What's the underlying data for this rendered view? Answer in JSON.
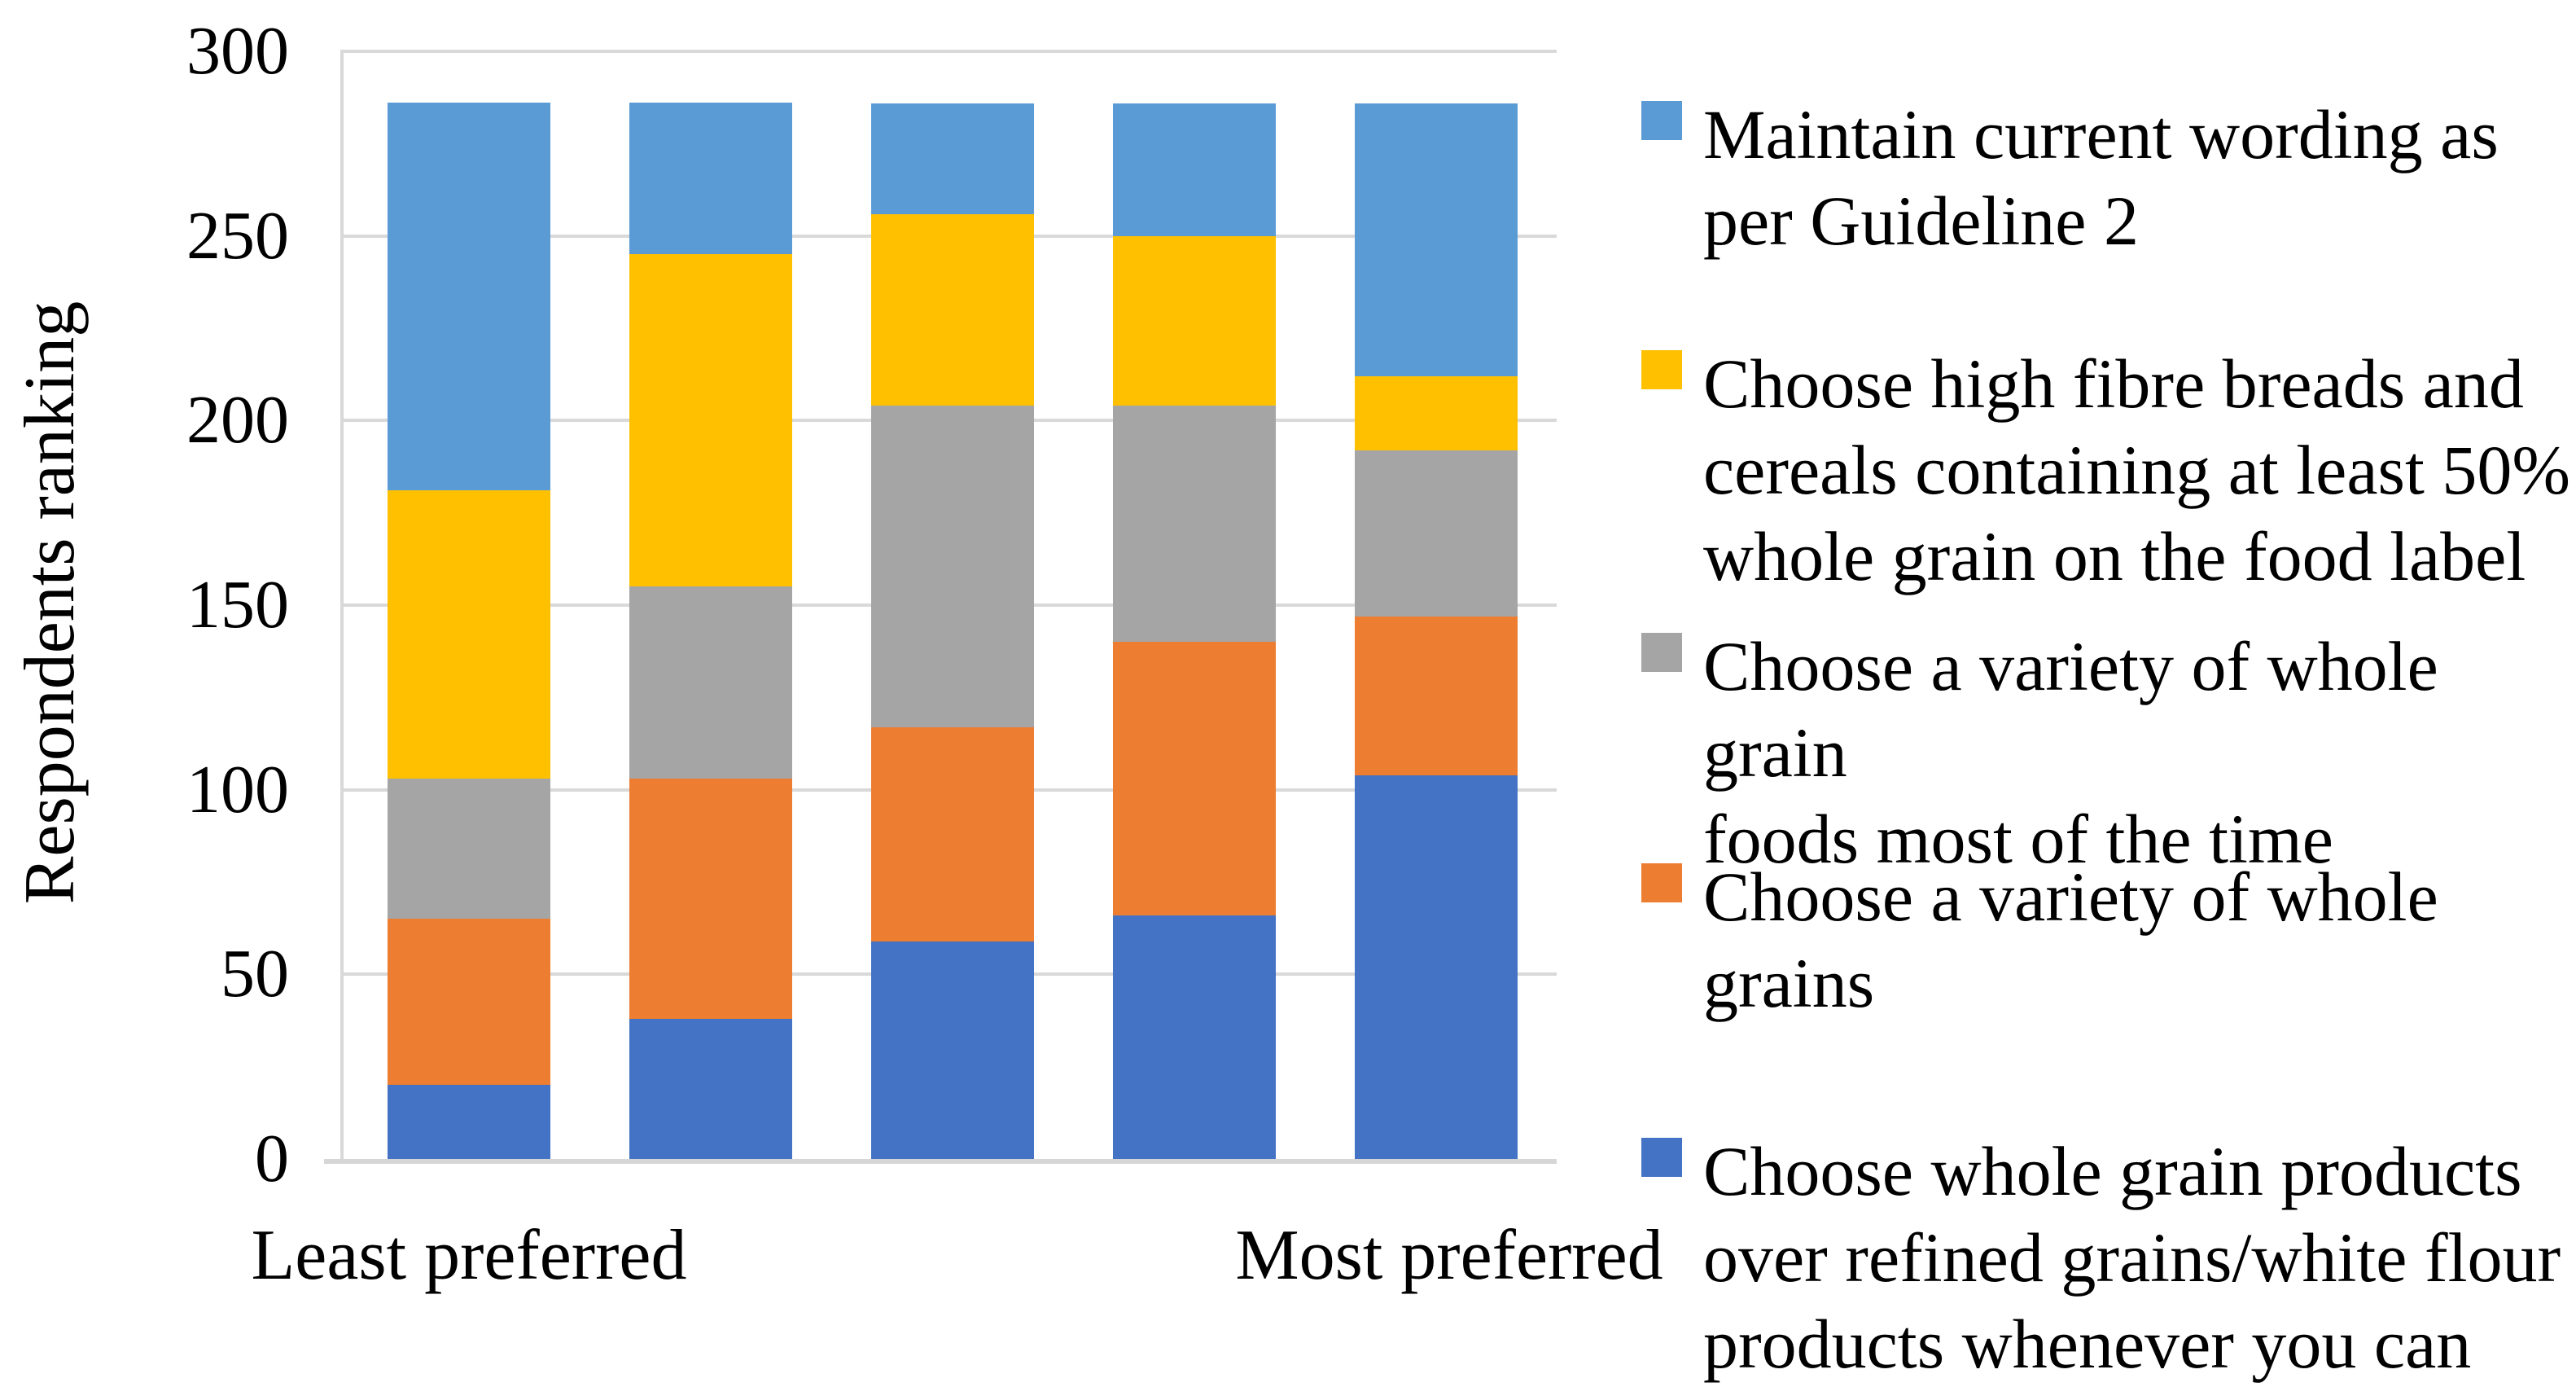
{
  "chart_data": {
    "type": "stacked-bar",
    "title": "",
    "ylabel": "Respondents ranking",
    "xlabel": "",
    "ylim": [
      0,
      300
    ],
    "ytick_interval": 50,
    "yticks": [
      300,
      250,
      200,
      150,
      100,
      50,
      0
    ],
    "grid": true,
    "legend_position": "right",
    "x_end_labels": [
      "Least preferred",
      "Most preferred"
    ],
    "categories": [
      "Least preferred",
      "",
      "",
      "",
      "Most preferred"
    ],
    "total_per_bar": 286,
    "series": [
      {
        "name": "Choose whole grain products over refined grains/white flour products whenever you can",
        "legend_label": "Choose whole grain products\nover refined grains/white flour\nproducts whenever you can",
        "color": "#4472C4",
        "values": [
          20,
          38,
          59,
          66,
          104
        ]
      },
      {
        "name": "Choose a variety of whole grains",
        "legend_label": "Choose a variety of whole\ngrains",
        "color": "#ED7D31",
        "values": [
          45,
          65,
          58,
          74,
          43
        ]
      },
      {
        "name": "Choose a variety of whole grain foods most of the time",
        "legend_label": "Choose a variety of whole grain\nfoods most of the time",
        "color": "#A5A5A5",
        "values": [
          38,
          52,
          87,
          64,
          45
        ]
      },
      {
        "name": "Choose high fibre breads and cereals containing at least 50% whole grain on the food label",
        "legend_label": "Choose high fibre breads and\ncereals containing at least 50%\nwhole grain on the food label",
        "color": "#FFC000",
        "values": [
          78,
          90,
          52,
          46,
          20
        ]
      },
      {
        "name": "Maintain current wording as per Guideline 2",
        "legend_label": "Maintain current wording as\nper Guideline 2",
        "color": "#5B9BD5",
        "values": [
          105,
          41,
          30,
          36,
          74
        ]
      }
    ],
    "colors": {
      "gridline": "#D9D9D9",
      "axis_line": "#D6D6D6",
      "text": "#000000",
      "background": "#FFFFFF"
    }
  }
}
